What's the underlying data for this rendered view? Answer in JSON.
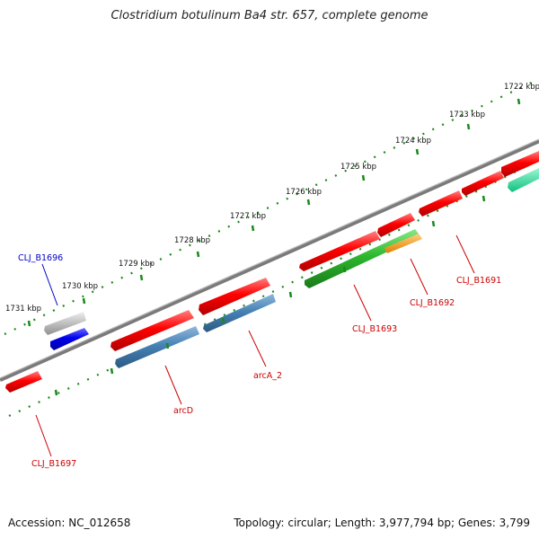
{
  "title": "Clostridium botulinum Ba4 str. 657, complete genome",
  "footer": {
    "accession": "Accession: NC_012658",
    "summary": "Topology: circular; Length: 3,977,794 bp; Genes: 3,799"
  },
  "ticks": [
    "1722 kbp",
    "1723 kbp",
    "1724 kbp",
    "1725 kbp",
    "1726 kbp",
    "1727 kbp",
    "1728 kbp",
    "1729 kbp",
    "1730 kbp",
    "1731 kbp"
  ],
  "genes": [
    {
      "label": "CLJ_B1691",
      "color": "#cc0000"
    },
    {
      "label": "CLJ_B1692",
      "color": "#cc0000"
    },
    {
      "label": "CLJ_B1693",
      "color": "#cc0000"
    },
    {
      "label": "arcA_2",
      "color": "#cc0000"
    },
    {
      "label": "arcD",
      "color": "#cc0000"
    },
    {
      "label": "CLJ_B1696",
      "color": "#0000cc"
    },
    {
      "label": "CLJ_B1697",
      "color": "#cc0000"
    }
  ],
  "colors": {
    "cds": "#e60000",
    "gene": "#3f7fbf",
    "misc_green": "#2db82d",
    "orange": "#ff9900",
    "teal": "#1de39a",
    "grey": "#b0b0b0",
    "blue": "#0000e0",
    "backbone": "#808080",
    "ticks": "#1a8a1a"
  }
}
